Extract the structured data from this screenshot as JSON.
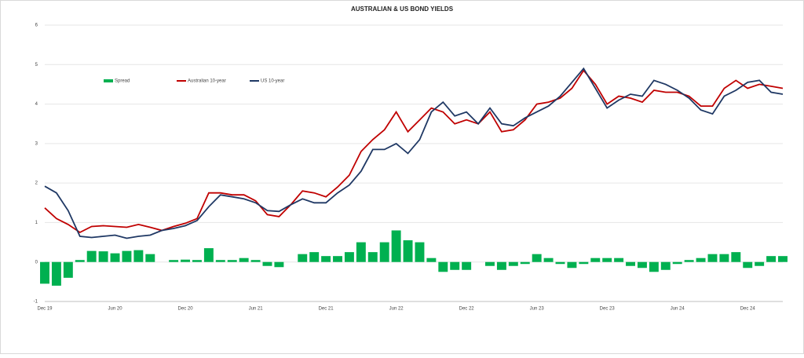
{
  "chart_data": {
    "type": "combo",
    "title": "AUSTRALIAN & US BOND YIELDS",
    "categories": [
      "Dec 19",
      null,
      null,
      null,
      null,
      null,
      "Jun 20",
      null,
      null,
      null,
      null,
      null,
      "Dec 20",
      null,
      null,
      null,
      null,
      null,
      "Jun 21",
      null,
      null,
      null,
      null,
      null,
      "Dec 21",
      null,
      null,
      null,
      null,
      null,
      "Jun 22",
      null,
      null,
      null,
      null,
      null,
      "Dec 22",
      null,
      null,
      null,
      null,
      null,
      "Jun 23",
      null,
      null,
      null,
      null,
      null,
      "Dec 23",
      null,
      null,
      null,
      null,
      null,
      "Jun 24",
      null,
      null,
      null,
      null,
      null,
      "Dec 24",
      null,
      null,
      null
    ],
    "series": [
      {
        "name": "Spread",
        "kind": "bar",
        "color": "#00b050",
        "values": [
          -0.55,
          -0.6,
          -0.4,
          0.05,
          0.28,
          0.27,
          0.22,
          0.28,
          0.3,
          0.2,
          0.0,
          0.05,
          0.06,
          0.05,
          0.35,
          0.05,
          0.05,
          0.1,
          0.05,
          -0.1,
          -0.13,
          0,
          0.2,
          0.25,
          0.15,
          0.15,
          0.25,
          0.5,
          0.25,
          0.5,
          0.8,
          0.55,
          0.5,
          0.1,
          -0.25,
          -0.2,
          -0.2,
          0,
          -0.1,
          -0.2,
          -0.1,
          -0.05,
          0.2,
          0.1,
          -0.05,
          -0.15,
          -0.05,
          0.1,
          0.1,
          0.1,
          -0.1,
          -0.15,
          -0.25,
          -0.2,
          -0.05,
          0.05,
          0.1,
          0.2,
          0.2,
          0.25,
          -0.15,
          -0.1,
          0.15,
          0.15
        ]
      },
      {
        "name": "Australian 10-year",
        "kind": "line",
        "color": "#c00000",
        "values": [
          1.37,
          1.1,
          0.95,
          0.75,
          0.9,
          0.92,
          0.9,
          0.88,
          0.95,
          0.88,
          0.8,
          0.9,
          0.98,
          1.1,
          1.75,
          1.75,
          1.7,
          1.7,
          1.55,
          1.2,
          1.15,
          1.45,
          1.8,
          1.75,
          1.65,
          1.9,
          2.2,
          2.8,
          3.1,
          3.35,
          3.8,
          3.3,
          3.6,
          3.9,
          3.8,
          3.5,
          3.6,
          3.5,
          3.8,
          3.3,
          3.35,
          3.6,
          4.0,
          4.05,
          4.15,
          4.4,
          4.85,
          4.5,
          4.0,
          4.2,
          4.15,
          4.05,
          4.35,
          4.3,
          4.3,
          4.2,
          3.95,
          3.95,
          4.4,
          4.6,
          4.4,
          4.5,
          4.45,
          4.4
        ]
      },
      {
        "name": "US 10-year",
        "kind": "line",
        "color": "#1f3864",
        "values": [
          1.92,
          1.75,
          1.3,
          0.65,
          0.62,
          0.65,
          0.68,
          0.6,
          0.65,
          0.68,
          0.8,
          0.85,
          0.92,
          1.05,
          1.4,
          1.7,
          1.65,
          1.6,
          1.5,
          1.3,
          1.28,
          1.45,
          1.6,
          1.5,
          1.5,
          1.75,
          1.95,
          2.3,
          2.85,
          2.85,
          3.0,
          2.75,
          3.1,
          3.8,
          4.05,
          3.7,
          3.8,
          3.5,
          3.9,
          3.5,
          3.45,
          3.65,
          3.8,
          3.95,
          4.2,
          4.55,
          4.9,
          4.4,
          3.9,
          4.1,
          4.25,
          4.2,
          4.6,
          4.5,
          4.35,
          4.15,
          3.85,
          3.75,
          4.2,
          4.35,
          4.55,
          4.6,
          4.3,
          4.25
        ]
      }
    ],
    "ylim": [
      -1,
      6
    ],
    "yticks": [
      -1,
      0,
      1,
      2,
      3,
      4,
      5,
      6
    ],
    "grid": true,
    "legend": "top-left"
  }
}
